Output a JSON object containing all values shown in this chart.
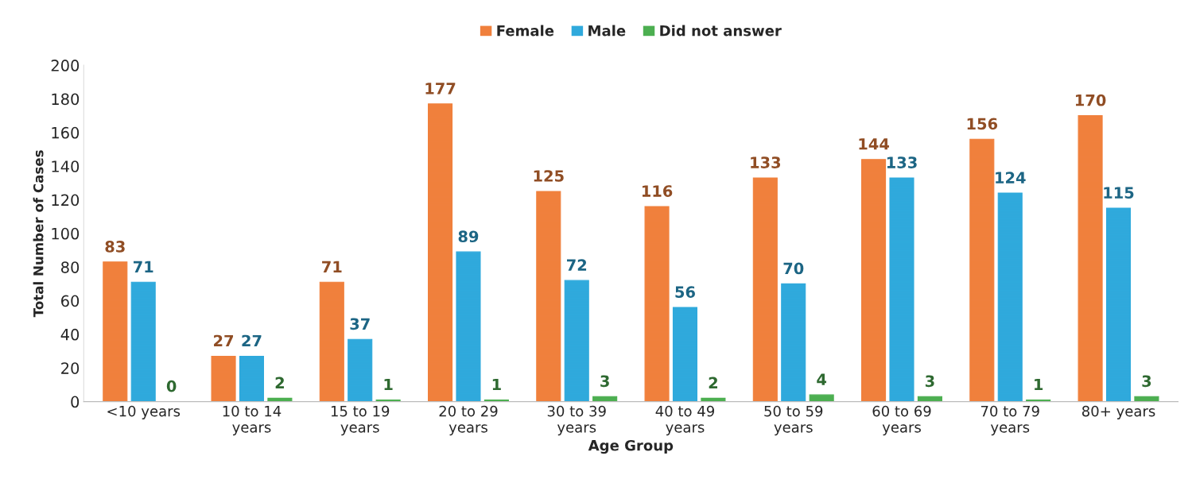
{
  "chart_data": {
    "type": "bar",
    "xlabel": "Age Group",
    "ylabel": "Total Number of Cases",
    "categories": [
      "<10 years",
      "10 to 14\nyears",
      "15 to 19\nyears",
      "20 to 29\nyears",
      "30 to 39\nyears",
      "40 to 49\nyears",
      "50 to 59\nyears",
      "60 to 69\nyears",
      "70 to 79\nyears",
      "80+ years"
    ],
    "series": [
      {
        "name": "Female",
        "color": "#f0803c",
        "values": [
          83,
          27,
          71,
          177,
          125,
          116,
          133,
          144,
          156,
          170
        ]
      },
      {
        "name": "Male",
        "color": "#2fa9dc",
        "values": [
          71,
          27,
          37,
          89,
          72,
          56,
          70,
          133,
          124,
          115
        ]
      },
      {
        "name": "Did not answer",
        "color": "#4caf50",
        "values": [
          0,
          2,
          1,
          1,
          3,
          2,
          4,
          3,
          1,
          3
        ]
      }
    ],
    "ylim": [
      0,
      200
    ],
    "yticks": [
      0,
      20,
      40,
      60,
      80,
      100,
      120,
      140,
      160,
      180,
      200
    ],
    "data_labels": true,
    "legend": "top",
    "grid": false
  }
}
